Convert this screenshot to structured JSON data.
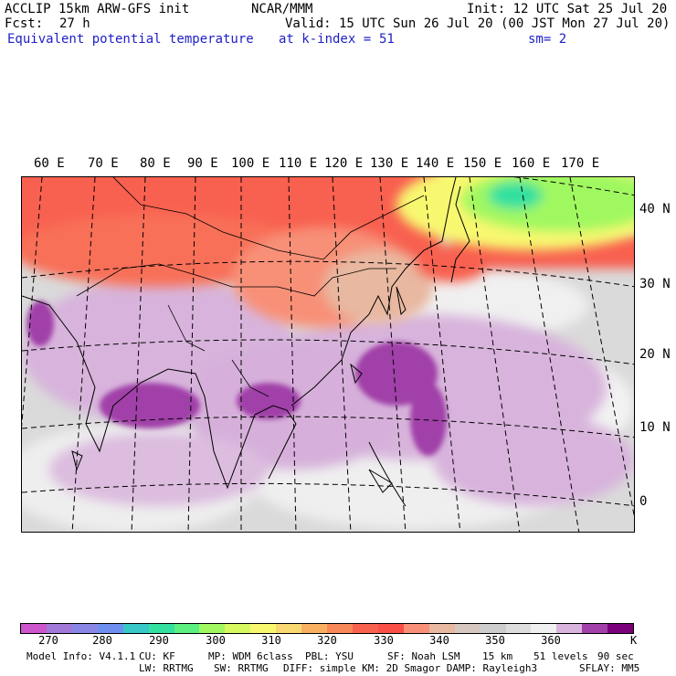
{
  "header": {
    "model": "ACCLIP 15km ARW-GFS init",
    "center": "NCAR/MMM",
    "init": "Init: 12 UTC Sat 25 Jul 20",
    "fcst_label": "Fcst:",
    "fcst_value": "27 h",
    "valid": "Valid: 15 UTC Sun 26 Jul 20 (00 JST Mon 27 Jul 20)",
    "field": "Equivalent potential temperature",
    "level": "at k-index =",
    "level_value": "51",
    "smoothing": "sm= 2"
  },
  "map": {
    "lon_labels": [
      "60 E",
      "70 E",
      "80 E",
      "90 E",
      "100 E",
      "110 E",
      "120 E",
      "130 E",
      "140 E",
      "150 E",
      "160 E",
      "170 E"
    ],
    "lat_labels": [
      "40 N",
      "30 N",
      "20 N",
      "10 N",
      "0"
    ]
  },
  "colorbar": {
    "unit": "K",
    "tick_labels": [
      "270",
      "280",
      "290",
      "300",
      "310",
      "320",
      "330",
      "340",
      "350",
      "360"
    ],
    "colors": [
      "#cc55cc",
      "#a07ad6",
      "#8a86e6",
      "#6f8ff0",
      "#38c8c8",
      "#33e0a0",
      "#5cf080",
      "#a0f860",
      "#d8f860",
      "#f8f870",
      "#f8d870",
      "#f8b060",
      "#f88858",
      "#f86050",
      "#f85048",
      "#f89078",
      "#e8b8a0",
      "#d6c8c0",
      "#cccccc",
      "#dddddd",
      "#f0f0f0",
      "#d8b4dc",
      "#a040a8",
      "#7a007a"
    ]
  },
  "footer": {
    "line1": [
      {
        "label": "Model Info: V4.1.1"
      },
      {
        "label": "CU: KF"
      },
      {
        "label": "MP: WDM 6class"
      },
      {
        "label": "PBL: YSU"
      },
      {
        "label": "SF: Noah LSM"
      },
      {
        "label": "15 km"
      },
      {
        "label": "51 levels"
      },
      {
        "label": "90 sec"
      }
    ],
    "line2": [
      {
        "label": "LW: RRTMG"
      },
      {
        "label": "SW: RRTMG"
      },
      {
        "label": "DIFF: simple KM: 2D Smagor DAMP: Rayleigh3"
      },
      {
        "label": "SFLAY: MM5"
      }
    ]
  }
}
